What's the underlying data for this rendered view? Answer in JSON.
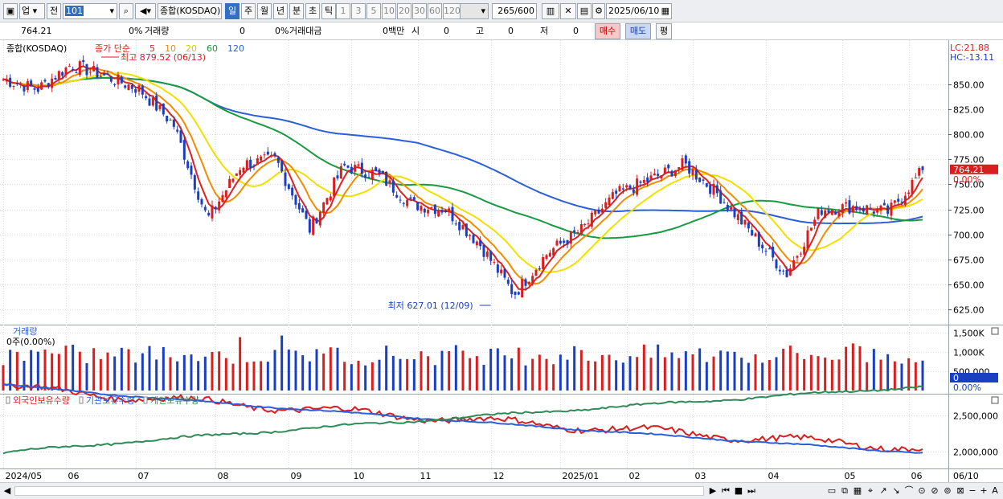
{
  "toolbar": {
    "market": "업",
    "prev": "전",
    "code": "101",
    "index_name": "종합(KOSDAQ)",
    "periods": [
      "일",
      "주",
      "월",
      "년",
      "분",
      "초",
      "틱"
    ],
    "selected_period": "일",
    "intervals": [
      "1",
      "3",
      "5",
      "10",
      "20",
      "30",
      "60",
      "120"
    ],
    "count": "265",
    "count_max": "/600",
    "date": "2025/06/10"
  },
  "info": {
    "price": "764.21",
    "change_pct": "0%",
    "volume_label": "거래량",
    "volume": "0",
    "volume_pct": "0%",
    "amount_label": "거래대금",
    "amount": "0백만",
    "open_label": "시",
    "open": "0",
    "high_label": "고",
    "high": "0",
    "low_label": "저",
    "low": "0",
    "buy_label": "매수",
    "sell_label": "매도",
    "avg_label": "평"
  },
  "price_panel": {
    "title": "종합(KOSDAQ)",
    "ma_prefix": "종가 단순",
    "ma_periods": [
      "5",
      "10",
      "20",
      "60",
      "120"
    ],
    "ma_colors": [
      "#e02020",
      "#f08c00",
      "#f0e000",
      "#1a9a40",
      "#2a5fd8"
    ],
    "lc_label": "LC:21.88",
    "hc_label": "HC:-13.11",
    "current_price_tag": "764.21",
    "current_pct_tag": "0.00%",
    "high_note": "최고 879.52 (06/13)",
    "low_note": "최저 627.01 (12/09)",
    "axis_ticks": [
      "850.00",
      "825.00",
      "800.00",
      "775.00",
      "750.00",
      "725.00",
      "700.00",
      "675.00",
      "650.00",
      "625.00"
    ]
  },
  "volume_panel": {
    "title": "거래량",
    "value_text": "0주(0.00%)",
    "axis_ticks": [
      "1,500K",
      "1,000K",
      "500,000"
    ],
    "current_tag": "0",
    "current_pct": "0.00%"
  },
  "holdings_panel": {
    "series": [
      {
        "name": "외국인보유수량",
        "color": "#d81e1e"
      },
      {
        "name": "기관보유수량",
        "color": "#2a5fd8"
      },
      {
        "name": "개인보유수량",
        "color": "#2e8b57"
      }
    ],
    "axis_ticks": [
      "2,500,000",
      "2,000,000"
    ]
  },
  "x_axis": {
    "labels": [
      "2024/05",
      "06",
      "07",
      "08",
      "09",
      "10",
      "11",
      "12",
      "2025/01",
      "02",
      "03",
      "04",
      "05",
      "06"
    ],
    "end_label": "06/10"
  },
  "chart_data": [
    {
      "type": "line",
      "title": "종합(KOSDAQ)",
      "xlabel": "",
      "ylabel": "",
      "x": [
        "2024-05-13",
        "2024-05-27",
        "2024-06-13",
        "2024-06-28",
        "2024-07-15",
        "2024-07-31",
        "2024-08-05",
        "2024-08-16",
        "2024-09-02",
        "2024-09-10",
        "2024-09-30",
        "2024-10-15",
        "2024-10-31",
        "2024-11-14",
        "2024-11-29",
        "2024-12-09",
        "2024-12-20",
        "2025-01-10",
        "2025-01-31",
        "2025-02-14",
        "2025-02-28",
        "2025-03-14",
        "2025-03-31",
        "2025-04-09",
        "2025-04-21",
        "2025-05-09",
        "2025-05-23",
        "2025-06-10"
      ],
      "ylim": [
        615,
        890
      ],
      "series": [
        {
          "name": "",
          "values": [
            855,
            845,
            870,
            858,
            845,
            810,
            715,
            770,
            775,
            705,
            768,
            760,
            730,
            725,
            690,
            640,
            682,
            705,
            740,
            755,
            770,
            740,
            700,
            660,
            725,
            728,
            722,
            764.21
          ]
        }
      ]
    }
  ]
}
